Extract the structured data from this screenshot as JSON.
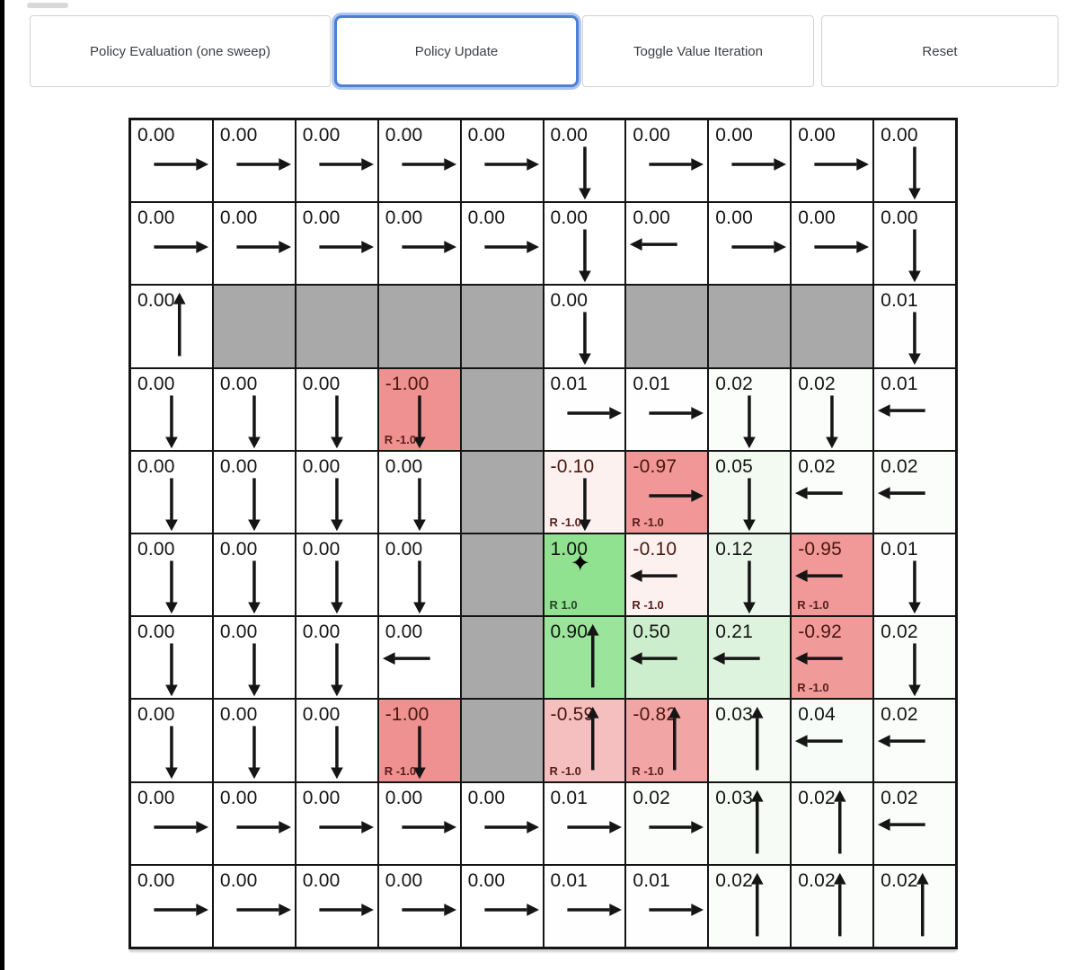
{
  "toolbar": {
    "active_border_color": "#4d7fd6",
    "buttons": [
      {
        "name": "policy-evaluation-button",
        "label": "Policy Evaluation (one sweep)",
        "active": false
      },
      {
        "name": "policy-update-button",
        "label": "Policy Update",
        "active": true
      },
      {
        "name": "toggle-value-iteration-button",
        "label": "Toggle Value Iteration",
        "active": false
      },
      {
        "name": "reset-button",
        "label": "Reset",
        "active": false
      }
    ]
  },
  "icons": {
    "star": "✦"
  },
  "grid": {
    "rows": 10,
    "cols": 10,
    "colors": {
      "wall": "#a9a9a9",
      "border": "#141414",
      "positive_max": "#90e190",
      "negative_max": "#f09191"
    },
    "cells": [
      [
        {
          "v": "0.00",
          "a": "right"
        },
        {
          "v": "0.00",
          "a": "right"
        },
        {
          "v": "0.00",
          "a": "right"
        },
        {
          "v": "0.00",
          "a": "right"
        },
        {
          "v": "0.00",
          "a": "right"
        },
        {
          "v": "0.00",
          "a": "down"
        },
        {
          "v": "0.00",
          "a": "right"
        },
        {
          "v": "0.00",
          "a": "right"
        },
        {
          "v": "0.00",
          "a": "right"
        },
        {
          "v": "0.00",
          "a": "down"
        }
      ],
      [
        {
          "v": "0.00",
          "a": "right"
        },
        {
          "v": "0.00",
          "a": "right"
        },
        {
          "v": "0.00",
          "a": "right"
        },
        {
          "v": "0.00",
          "a": "right"
        },
        {
          "v": "0.00",
          "a": "right"
        },
        {
          "v": "0.00",
          "a": "down"
        },
        {
          "v": "0.00",
          "a": "left"
        },
        {
          "v": "0.00",
          "a": "right"
        },
        {
          "v": "0.00",
          "a": "right"
        },
        {
          "v": "0.00",
          "a": "down"
        }
      ],
      [
        {
          "v": "0.00",
          "a": "up"
        },
        {
          "w": true
        },
        {
          "w": true
        },
        {
          "w": true
        },
        {
          "w": true
        },
        {
          "v": "0.00",
          "a": "down"
        },
        {
          "w": true
        },
        {
          "w": true
        },
        {
          "w": true
        },
        {
          "v": "0.01",
          "a": "down",
          "bg": "#fdfefd"
        }
      ],
      [
        {
          "v": "0.00",
          "a": "down"
        },
        {
          "v": "0.00",
          "a": "down"
        },
        {
          "v": "0.00",
          "a": "down"
        },
        {
          "v": "-1.00",
          "a": "down",
          "r": "R -1.0",
          "bg": "#f09191"
        },
        {
          "w": true
        },
        {
          "v": "0.01",
          "a": "right",
          "bg": "#fdfefd"
        },
        {
          "v": "0.01",
          "a": "right",
          "bg": "#fdfefd"
        },
        {
          "v": "0.02",
          "a": "down",
          "bg": "#fbfdfb"
        },
        {
          "v": "0.02",
          "a": "down",
          "bg": "#fbfdfb"
        },
        {
          "v": "0.01",
          "a": "left",
          "bg": "#fdfefd"
        }
      ],
      [
        {
          "v": "0.00",
          "a": "down"
        },
        {
          "v": "0.00",
          "a": "down"
        },
        {
          "v": "0.00",
          "a": "down"
        },
        {
          "v": "0.00",
          "a": "down"
        },
        {
          "w": true
        },
        {
          "v": "-0.10",
          "a": "down",
          "r": "R -1.0",
          "bg": "#fdf1f0"
        },
        {
          "v": "-0.97",
          "a": "right",
          "r": "R -1.0",
          "bg": "#f19797"
        },
        {
          "v": "0.05",
          "a": "down",
          "bg": "#f2faf2"
        },
        {
          "v": "0.02",
          "a": "left",
          "bg": "#fbfdfb"
        },
        {
          "v": "0.02",
          "a": "left",
          "bg": "#fbfdfb"
        }
      ],
      [
        {
          "v": "0.00",
          "a": "down"
        },
        {
          "v": "0.00",
          "a": "down"
        },
        {
          "v": "0.00",
          "a": "down"
        },
        {
          "v": "0.00",
          "a": "down"
        },
        {
          "w": true
        },
        {
          "v": "1.00",
          "a": "star",
          "r": "R 1.0",
          "bg": "#90e190"
        },
        {
          "v": "-0.10",
          "a": "left",
          "r": "R -1.0",
          "bg": "#fdf1f0"
        },
        {
          "v": "0.12",
          "a": "down",
          "bg": "#e9f6e9"
        },
        {
          "v": "-0.95",
          "a": "left",
          "r": "R -1.0",
          "bg": "#f19898"
        },
        {
          "v": "0.01",
          "a": "down",
          "bg": "#fdfefd"
        }
      ],
      [
        {
          "v": "0.00",
          "a": "down"
        },
        {
          "v": "0.00",
          "a": "down"
        },
        {
          "v": "0.00",
          "a": "down"
        },
        {
          "v": "0.00",
          "a": "left"
        },
        {
          "w": true
        },
        {
          "v": "0.90",
          "a": "up",
          "bg": "#9be49b"
        },
        {
          "v": "0.50",
          "a": "left",
          "bg": "#cceecc"
        },
        {
          "v": "0.21",
          "a": "left",
          "bg": "#def3de"
        },
        {
          "v": "-0.92",
          "a": "left",
          "r": "R -1.0",
          "bg": "#f19a9a"
        },
        {
          "v": "0.02",
          "a": "down",
          "bg": "#fbfdfb"
        }
      ],
      [
        {
          "v": "0.00",
          "a": "down"
        },
        {
          "v": "0.00",
          "a": "down"
        },
        {
          "v": "0.00",
          "a": "down"
        },
        {
          "v": "-1.00",
          "a": "down",
          "r": "R -1.0",
          "bg": "#f09191"
        },
        {
          "w": true
        },
        {
          "v": "-0.59",
          "a": "up",
          "r": "R -1.0",
          "bg": "#f5bfbf"
        },
        {
          "v": "-0.82",
          "a": "up",
          "r": "R -1.0",
          "bg": "#f2a5a5"
        },
        {
          "v": "0.03",
          "a": "up",
          "bg": "#f6fbf6"
        },
        {
          "v": "0.04",
          "a": "left",
          "bg": "#f8fcf8"
        },
        {
          "v": "0.02",
          "a": "left",
          "bg": "#fbfdfb"
        }
      ],
      [
        {
          "v": "0.00",
          "a": "right"
        },
        {
          "v": "0.00",
          "a": "right"
        },
        {
          "v": "0.00",
          "a": "right"
        },
        {
          "v": "0.00",
          "a": "right"
        },
        {
          "v": "0.00",
          "a": "right"
        },
        {
          "v": "0.01",
          "a": "right",
          "bg": "#fdfefd"
        },
        {
          "v": "0.02",
          "a": "right",
          "bg": "#fbfdfb"
        },
        {
          "v": "0.03",
          "a": "up",
          "bg": "#f6fbf6"
        },
        {
          "v": "0.02",
          "a": "up",
          "bg": "#fbfdfb"
        },
        {
          "v": "0.02",
          "a": "left",
          "bg": "#fbfdfb"
        }
      ],
      [
        {
          "v": "0.00",
          "a": "right"
        },
        {
          "v": "0.00",
          "a": "right"
        },
        {
          "v": "0.00",
          "a": "right"
        },
        {
          "v": "0.00",
          "a": "right"
        },
        {
          "v": "0.00",
          "a": "right"
        },
        {
          "v": "0.01",
          "a": "right",
          "bg": "#fdfefd"
        },
        {
          "v": "0.01",
          "a": "right",
          "bg": "#fdfefd"
        },
        {
          "v": "0.02",
          "a": "up",
          "bg": "#fbfdfb"
        },
        {
          "v": "0.02",
          "a": "up",
          "bg": "#fbfdfb"
        },
        {
          "v": "0.02",
          "a": "up",
          "bg": "#fbfdfb"
        }
      ]
    ]
  }
}
